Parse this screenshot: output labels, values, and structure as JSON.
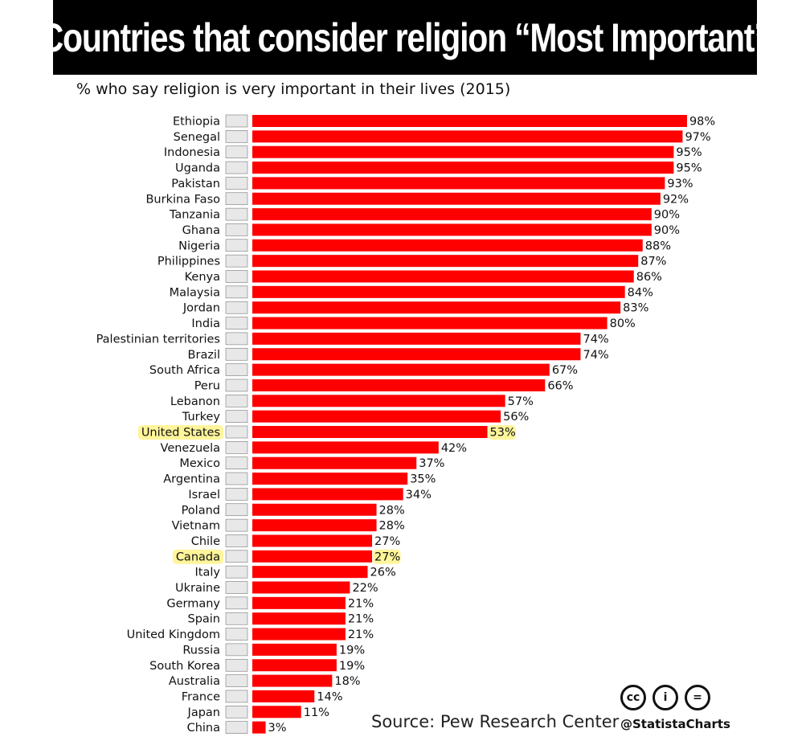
{
  "title": "Countries that consider religion “Most Important”",
  "subtitle": "% who say religion is very important in their lives (2015)",
  "source": "Source: Pew Research Center",
  "handle": "@StatistaCharts",
  "license_icons": [
    "cc-icon",
    "attribution-icon",
    "no-derivatives-icon"
  ],
  "license_labels": [
    "cc",
    "i",
    "="
  ],
  "colors": {
    "bar": "#ff0000",
    "title_bg": "#000000",
    "title_text": "#ffffff",
    "highlight": "#fff59a"
  },
  "chart_data": {
    "type": "bar",
    "orientation": "horizontal",
    "title": "Countries that consider religion “Most Important”",
    "subtitle": "% who say religion is very important in their lives (2015)",
    "xlabel": "",
    "ylabel": "",
    "xlim": [
      0,
      100
    ],
    "unit": "%",
    "categories": [
      "Ethiopia",
      "Senegal",
      "Indonesia",
      "Uganda",
      "Pakistan",
      "Burkina Faso",
      "Tanzania",
      "Ghana",
      "Nigeria",
      "Philippines",
      "Kenya",
      "Malaysia",
      "Jordan",
      "India",
      "Palestinian territories",
      "Brazil",
      "South Africa",
      "Peru",
      "Lebanon",
      "Turkey",
      "United States",
      "Venezuela",
      "Mexico",
      "Argentina",
      "Israel",
      "Poland",
      "Vietnam",
      "Chile",
      "Canada",
      "Italy",
      "Ukraine",
      "Germany",
      "Spain",
      "United Kingdom",
      "Russia",
      "South Korea",
      "Australia",
      "France",
      "Japan",
      "China"
    ],
    "values": [
      98,
      97,
      95,
      95,
      93,
      92,
      90,
      90,
      88,
      87,
      86,
      84,
      83,
      80,
      74,
      74,
      67,
      66,
      57,
      56,
      53,
      42,
      37,
      35,
      34,
      28,
      28,
      27,
      27,
      26,
      22,
      21,
      21,
      21,
      19,
      19,
      18,
      14,
      11,
      3
    ],
    "highlighted": [
      "United States",
      "Canada"
    ]
  }
}
